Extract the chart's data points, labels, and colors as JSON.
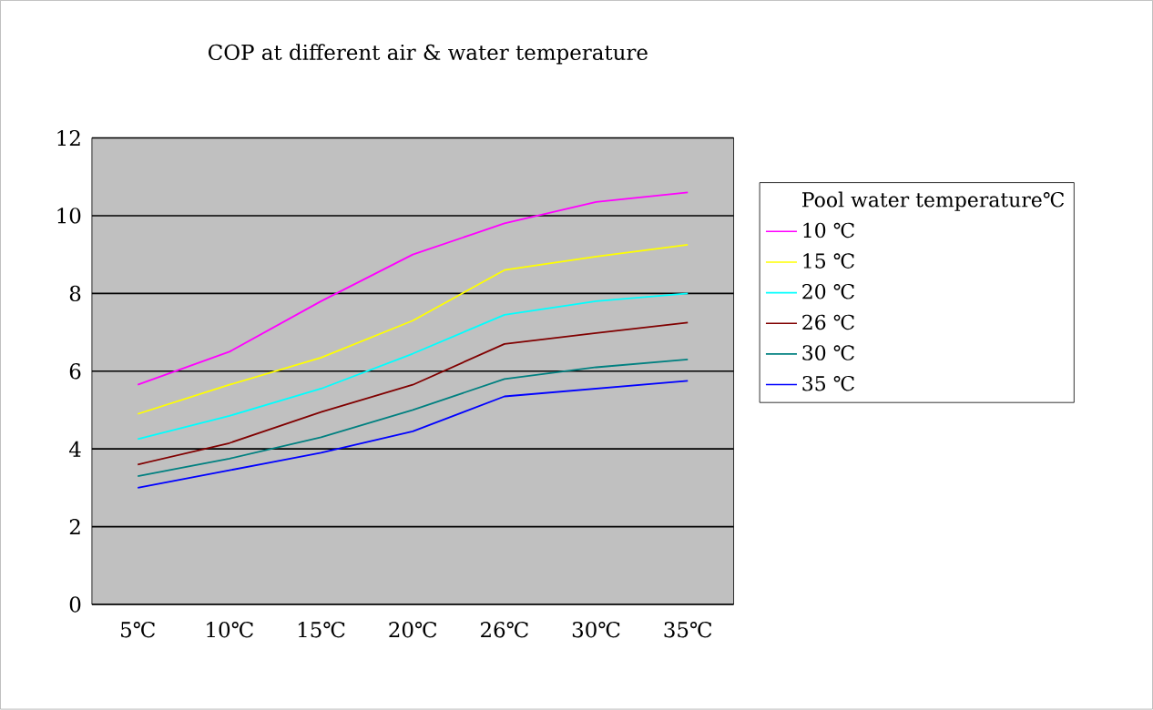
{
  "chart_data": {
    "type": "line",
    "title": "COP at different air & water temperature",
    "legend_title": "Pool water temperature℃",
    "categories": [
      "5℃",
      "10℃",
      "15℃",
      "20℃",
      "26℃",
      "30℃",
      "35℃"
    ],
    "series": [
      {
        "name": "10 ℃",
        "color": "#ff00ff",
        "values": [
          5.65,
          6.5,
          7.8,
          9.0,
          9.8,
          10.35,
          10.6
        ]
      },
      {
        "name": "15 ℃",
        "color": "#ffff00",
        "values": [
          4.9,
          5.65,
          6.35,
          7.3,
          8.6,
          8.95,
          9.25
        ]
      },
      {
        "name": "20 ℃",
        "color": "#00ffff",
        "values": [
          4.25,
          4.85,
          5.55,
          6.45,
          7.45,
          7.8,
          8.0
        ]
      },
      {
        "name": "26 ℃",
        "color": "#800000",
        "values": [
          3.6,
          4.15,
          4.95,
          5.65,
          6.7,
          6.98,
          7.25
        ]
      },
      {
        "name": "30 ℃",
        "color": "#008080",
        "values": [
          3.3,
          3.75,
          4.3,
          5.0,
          5.8,
          6.1,
          6.3
        ]
      },
      {
        "name": "35 ℃",
        "color": "#0000ff",
        "values": [
          3.0,
          3.45,
          3.9,
          4.45,
          5.35,
          5.55,
          5.75
        ]
      }
    ],
    "ylim": [
      0,
      12
    ],
    "yticks": [
      0,
      2,
      4,
      6,
      8,
      10,
      12
    ],
    "grid": "y",
    "legend": "right",
    "marker": "none",
    "line_style": "solid"
  }
}
